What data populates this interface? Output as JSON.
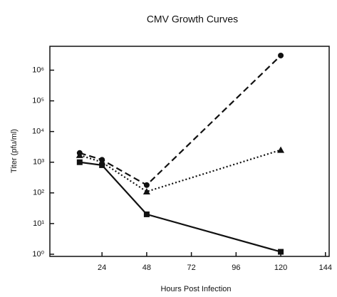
{
  "chart_data": {
    "type": "line",
    "title": "CMV Growth Curves",
    "x_label": "Hours Post Infection",
    "y_label": "Titer (pfu/ml)",
    "x": [
      12,
      24,
      48,
      120
    ],
    "series": [
      {
        "color": "#111111",
        "line_style": "dashed",
        "marker": "circle",
        "values": [
          2000,
          1200,
          180,
          3000000
        ]
      },
      {
        "color": "#111111",
        "line_style": "dotted",
        "marker": "triangle",
        "values": [
          1700,
          1000,
          110,
          2500
        ]
      },
      {
        "color": "#111111",
        "line_style": "solid",
        "marker": "square",
        "values": [
          1000,
          800,
          20,
          1.2
        ]
      }
    ],
    "xlim": [
      -4,
      146
    ],
    "xticks": [
      24,
      48,
      72,
      96,
      120,
      144
    ],
    "ylim": [
      0.85,
      6000000
    ],
    "log_y": true,
    "yticks": [
      {
        "value": 1,
        "label": "10⁰"
      },
      {
        "value": 10,
        "label": "10¹"
      },
      {
        "value": 100,
        "label": "10²"
      },
      {
        "value": 1000,
        "label": "10³"
      },
      {
        "value": 10000,
        "label": "10⁴"
      },
      {
        "value": 100000,
        "label": "10⁵"
      },
      {
        "value": 1000000,
        "label": "10⁶"
      }
    ]
  }
}
